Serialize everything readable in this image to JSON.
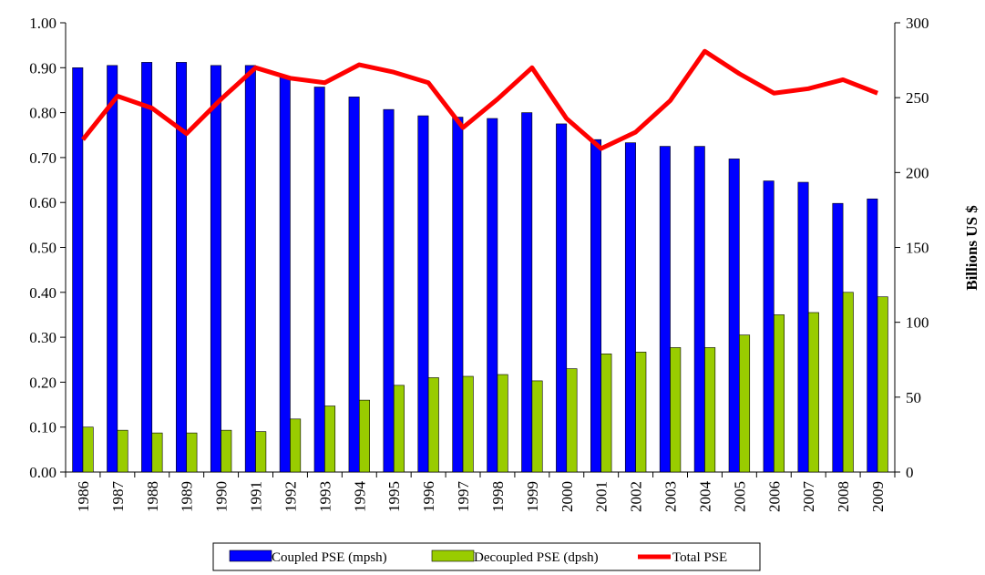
{
  "chart_data": {
    "type": "bar-line",
    "categories": [
      "1986",
      "1987",
      "1988",
      "1989",
      "1990",
      "1991",
      "1992",
      "1993",
      "1994",
      "1995",
      "1996",
      "1997",
      "1998",
      "1999",
      "2000",
      "2001",
      "2002",
      "2003",
      "2004",
      "2005",
      "2006",
      "2007",
      "2008",
      "2009"
    ],
    "series": [
      {
        "name": "Coupled PSE (mpsh)",
        "type": "bar",
        "color": "#0000ff",
        "values": [
          0.9,
          0.905,
          0.912,
          0.912,
          0.905,
          0.905,
          0.88,
          0.857,
          0.835,
          0.807,
          0.793,
          0.79,
          0.787,
          0.8,
          0.775,
          0.74,
          0.733,
          0.725,
          0.725,
          0.697,
          0.648,
          0.645,
          0.598,
          0.608
        ]
      },
      {
        "name": "Decoupled PSE (dpsh)",
        "type": "bar",
        "color": "#99cc00",
        "values": [
          0.1,
          0.093,
          0.087,
          0.087,
          0.093,
          0.09,
          0.118,
          0.147,
          0.16,
          0.193,
          0.21,
          0.213,
          0.217,
          0.203,
          0.23,
          0.263,
          0.267,
          0.277,
          0.277,
          0.305,
          0.35,
          0.355,
          0.4,
          0.39
        ]
      },
      {
        "name": "Total PSE",
        "type": "line",
        "axis": "y2",
        "color": "#ff0000",
        "values": [
          222,
          251,
          243,
          226,
          249,
          270,
          263,
          260,
          272,
          267,
          260,
          230,
          249,
          270,
          236,
          216,
          227,
          248,
          281,
          266,
          253,
          256,
          262,
          253
        ]
      }
    ],
    "ylim": [
      0,
      1
    ],
    "yticks": [
      {
        "value": 0,
        "label": "0.00"
      },
      {
        "value": 0.1,
        "label": "0.10"
      },
      {
        "value": 0.2,
        "label": "0.20"
      },
      {
        "value": 0.3,
        "label": "0.30"
      },
      {
        "value": 0.4,
        "label": "0.40"
      },
      {
        "value": 0.5,
        "label": "0.50"
      },
      {
        "value": 0.6,
        "label": "0.60"
      },
      {
        "value": 0.7,
        "label": "0.70"
      },
      {
        "value": 0.8,
        "label": "0.80"
      },
      {
        "value": 0.9,
        "label": "0.90"
      },
      {
        "value": 1,
        "label": "1.00"
      }
    ],
    "y2lim": [
      0,
      300
    ],
    "y2ticks": [
      0,
      50,
      100,
      150,
      200,
      250,
      300
    ],
    "y2label": "Billions US $",
    "legend": "bottom"
  }
}
